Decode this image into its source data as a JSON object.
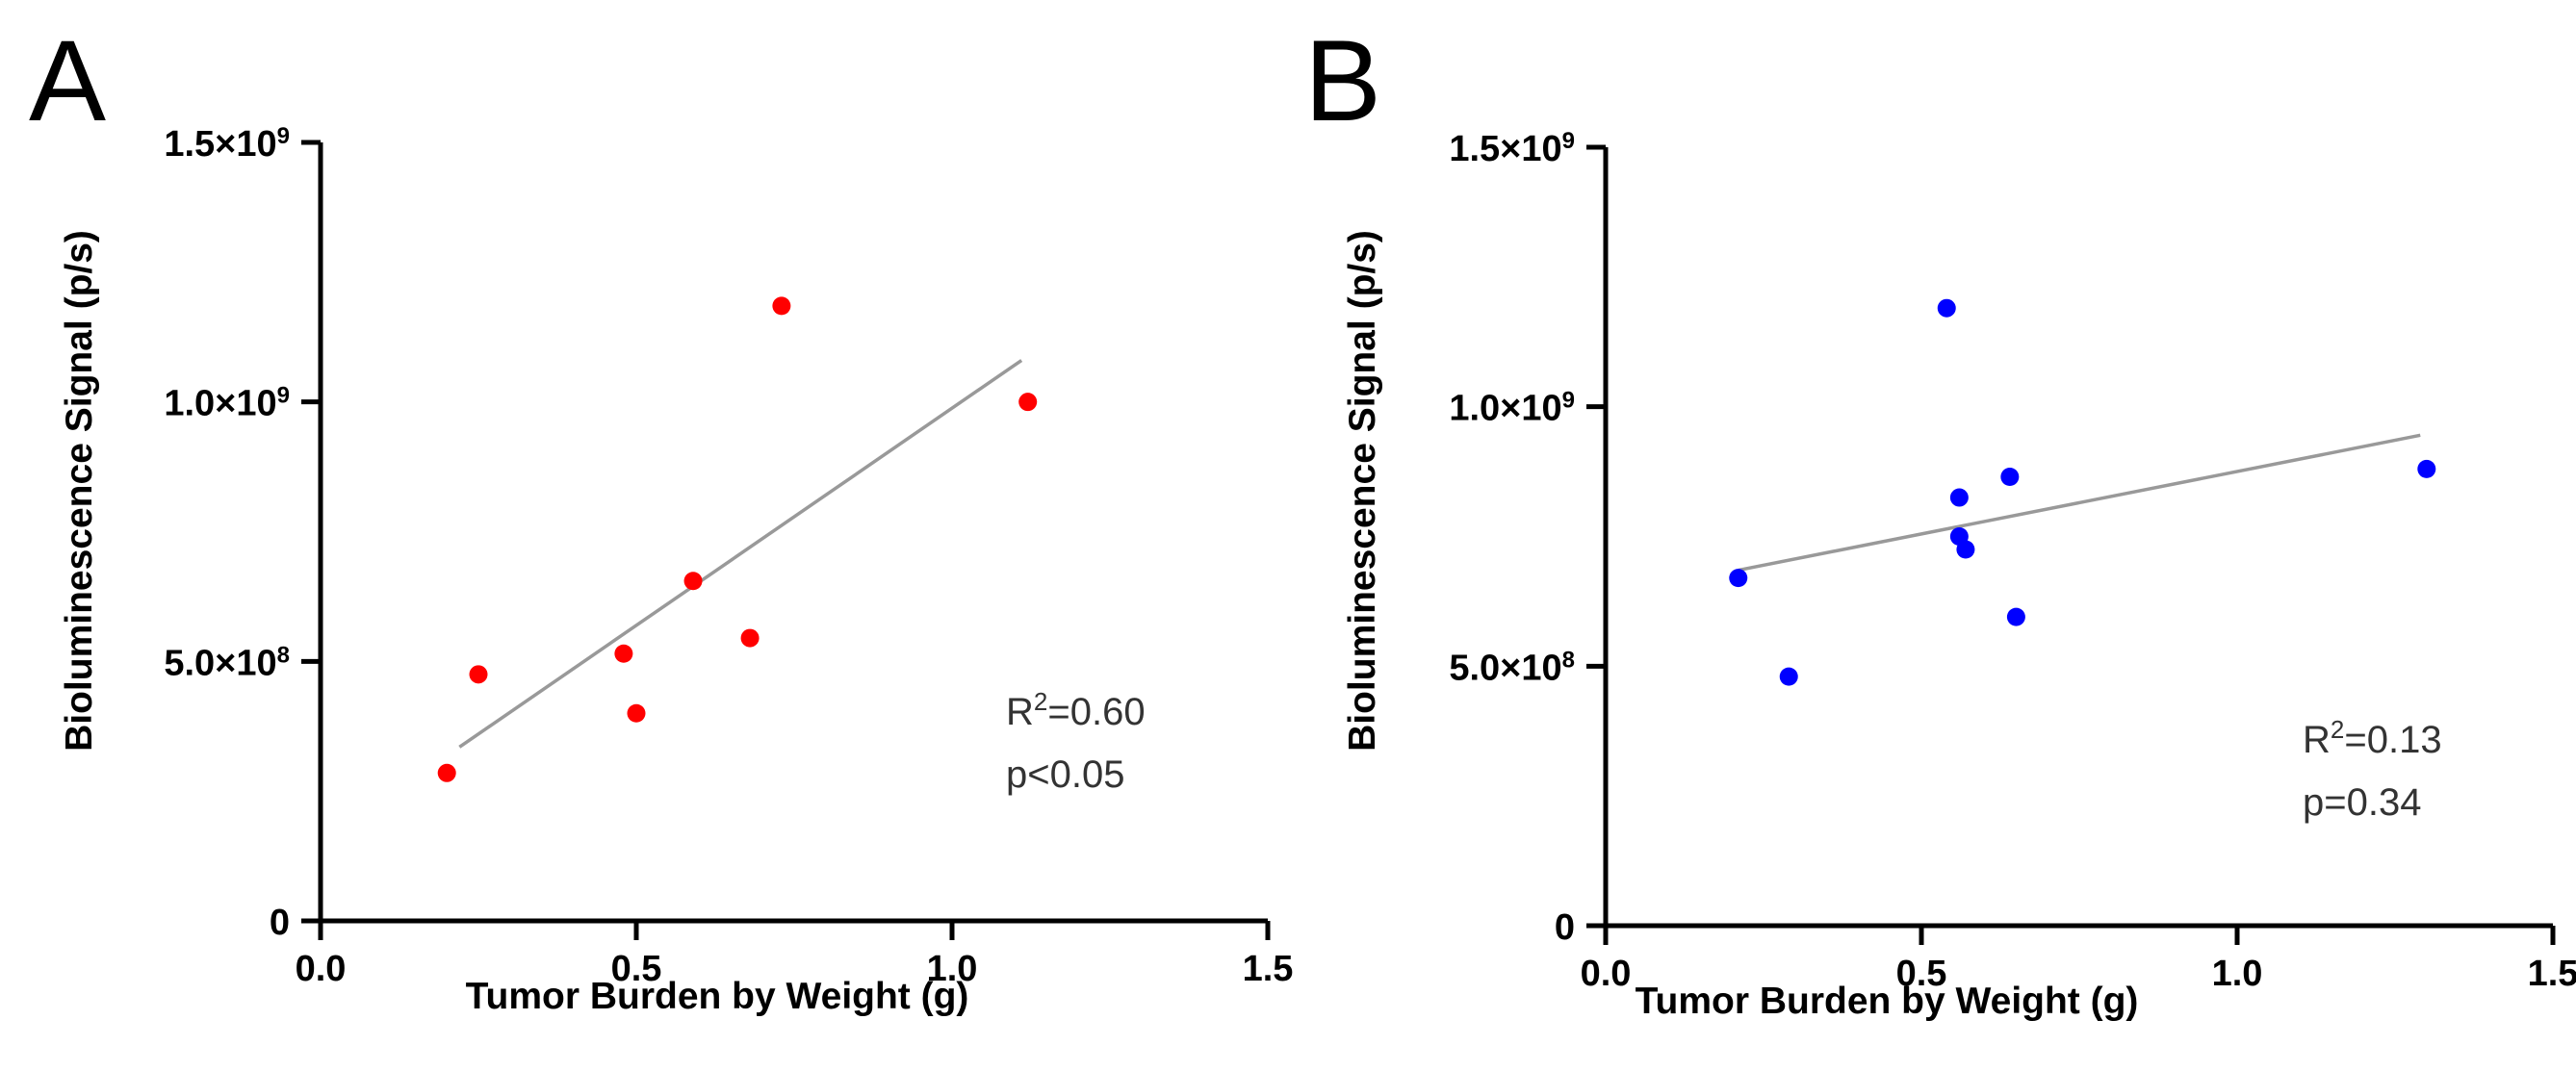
{
  "chart_data": [
    {
      "type": "scatter",
      "panel": "A",
      "xlabel": "Tumor Burden by Weight (g)",
      "ylabel": "Bioluminescence Signal (p/s)",
      "xlim": [
        0,
        1.5
      ],
      "ylim": [
        0,
        1500000000
      ],
      "x_ticks": [
        {
          "value": 0.0,
          "label": "0.0"
        },
        {
          "value": 0.5,
          "label": "0.5"
        },
        {
          "value": 1.0,
          "label": "1.0"
        },
        {
          "value": 1.5,
          "label": "1.5"
        }
      ],
      "y_ticks": [
        {
          "value": 0,
          "label": "0",
          "mantissa": "0",
          "exponent": ""
        },
        {
          "value": 500000000,
          "label": "5.0×10^8",
          "mantissa": "5.0×10",
          "exponent": "8"
        },
        {
          "value": 1000000000,
          "label": "1.0×10^9",
          "mantissa": "1.0×10",
          "exponent": "9"
        },
        {
          "value": 1500000000,
          "label": "1.5×10^9",
          "mantissa": "1.5×10",
          "exponent": "9"
        }
      ],
      "series": [
        {
          "name": "data",
          "color": "#ff0000",
          "points": [
            {
              "x": 0.2,
              "y": 285000000
            },
            {
              "x": 0.25,
              "y": 475000000
            },
            {
              "x": 0.48,
              "y": 515000000
            },
            {
              "x": 0.5,
              "y": 400000000
            },
            {
              "x": 0.59,
              "y": 655000000
            },
            {
              "x": 0.68,
              "y": 545000000
            },
            {
              "x": 0.73,
              "y": 1185000000
            },
            {
              "x": 1.12,
              "y": 1000000000
            }
          ]
        }
      ],
      "fit_line": {
        "color": "#999999",
        "x": [
          0.22,
          1.11
        ],
        "y": [
          335000000,
          1080000000
        ]
      },
      "stats": {
        "r2_prefix": "R",
        "r2_sup": "2",
        "r2_value": "=0.60",
        "p": "p<0.05"
      }
    },
    {
      "type": "scatter",
      "panel": "B",
      "xlabel": "Tumor Burden by Weight (g)",
      "ylabel": "Bioluminescence Signal (p/s)",
      "xlim": [
        0,
        1.5
      ],
      "ylim": [
        0,
        1500000000
      ],
      "x_ticks": [
        {
          "value": 0.0,
          "label": "0.0"
        },
        {
          "value": 0.5,
          "label": "0.5"
        },
        {
          "value": 1.0,
          "label": "1.0"
        },
        {
          "value": 1.5,
          "label": "1.5"
        }
      ],
      "y_ticks": [
        {
          "value": 0,
          "label": "0",
          "mantissa": "0",
          "exponent": ""
        },
        {
          "value": 500000000,
          "label": "5.0×10^8",
          "mantissa": "5.0×10",
          "exponent": "8"
        },
        {
          "value": 1000000000,
          "label": "1.0×10^9",
          "mantissa": "1.0×10",
          "exponent": "9"
        },
        {
          "value": 1500000000,
          "label": "1.5×10^9",
          "mantissa": "1.5×10",
          "exponent": "9"
        }
      ],
      "series": [
        {
          "name": "data",
          "color": "#0000ff",
          "points": [
            {
              "x": 0.21,
              "y": 670000000
            },
            {
              "x": 0.29,
              "y": 480000000
            },
            {
              "x": 0.54,
              "y": 1190000000
            },
            {
              "x": 0.56,
              "y": 825000000
            },
            {
              "x": 0.56,
              "y": 750000000
            },
            {
              "x": 0.57,
              "y": 725000000
            },
            {
              "x": 0.64,
              "y": 865000000
            },
            {
              "x": 0.65,
              "y": 595000000
            },
            {
              "x": 1.3,
              "y": 880000000
            }
          ]
        }
      ],
      "fit_line": {
        "color": "#999999",
        "x": [
          0.21,
          1.29
        ],
        "y": [
          685000000,
          945000000
        ]
      },
      "stats": {
        "r2_prefix": "R",
        "r2_sup": "2",
        "r2_value": "=0.13",
        "p": "p=0.34"
      }
    }
  ]
}
